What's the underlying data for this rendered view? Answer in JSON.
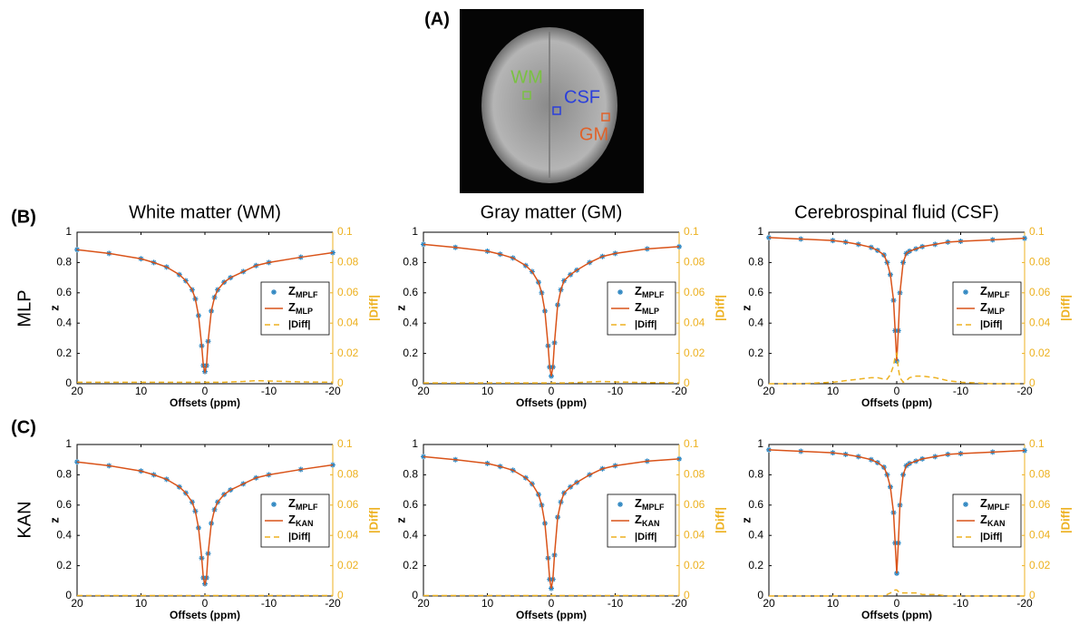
{
  "figure": {
    "panels": [
      "(A)",
      "(B)",
      "(C)"
    ],
    "rows": [
      "MLP",
      "KAN"
    ],
    "image_labels": [
      "WM",
      "CSF",
      "GM"
    ]
  },
  "chart_data": [
    {
      "type": "line",
      "title": "White matter (WM)",
      "x_label": "Offsets (ppm)",
      "y_label": "z",
      "y2_label": "|Diff|",
      "x": [
        20,
        15,
        10,
        8,
        6,
        4,
        3,
        2,
        1.5,
        1,
        0.5,
        0.25,
        0,
        -0.25,
        -0.5,
        -1,
        -1.5,
        -2,
        -3,
        -4,
        -6,
        -8,
        -10,
        -15,
        -20
      ],
      "xlim": [
        20,
        -20
      ],
      "xticks": [
        20,
        10,
        0,
        -10,
        -20
      ],
      "ylim": [
        0,
        1
      ],
      "yticks": [
        0,
        0.2,
        0.4,
        0.6,
        0.8,
        1
      ],
      "y2lim": [
        0,
        0.1
      ],
      "y2ticks": [
        0,
        0.02,
        0.04,
        0.06,
        0.08,
        0.1
      ],
      "legend": "right",
      "series": [
        {
          "name": "Z",
          "subscript": "MPLF",
          "color": "#2e86c1",
          "marker": "star",
          "values": [
            0.885,
            0.86,
            0.825,
            0.8,
            0.77,
            0.72,
            0.68,
            0.62,
            0.56,
            0.45,
            0.25,
            0.12,
            0.08,
            0.12,
            0.28,
            0.48,
            0.57,
            0.62,
            0.67,
            0.7,
            0.74,
            0.78,
            0.8,
            0.835,
            0.865
          ]
        },
        {
          "name": "Z",
          "subscript": "MLP",
          "color": "#d95319",
          "marker": "line",
          "values": [
            0.885,
            0.86,
            0.825,
            0.8,
            0.77,
            0.72,
            0.68,
            0.62,
            0.56,
            0.45,
            0.25,
            0.12,
            0.08,
            0.12,
            0.28,
            0.48,
            0.57,
            0.62,
            0.67,
            0.7,
            0.74,
            0.78,
            0.8,
            0.835,
            0.865
          ]
        },
        {
          "name": "|Diff|",
          "color": "#edb120",
          "marker": "dash",
          "axis": "y2",
          "values": [
            0.001,
            0.001,
            0.001,
            0.001,
            0.001,
            0.001,
            0.001,
            0.001,
            0.001,
            0.001,
            0.001,
            0.001,
            0.001,
            0.001,
            0.001,
            0.001,
            0.001,
            0.001,
            0.001,
            0.0012,
            0.0015,
            0.002,
            0.0018,
            0.0012,
            0.001
          ]
        }
      ]
    },
    {
      "type": "line",
      "title": "Gray matter (GM)",
      "x_label": "Offsets (ppm)",
      "y_label": "z",
      "y2_label": "|Diff|",
      "x": [
        20,
        15,
        10,
        8,
        6,
        4,
        3,
        2,
        1.5,
        1,
        0.5,
        0.25,
        0,
        -0.25,
        -0.5,
        -1,
        -1.5,
        -2,
        -3,
        -4,
        -6,
        -8,
        -10,
        -15,
        -20
      ],
      "xlim": [
        20,
        -20
      ],
      "xticks": [
        20,
        10,
        0,
        -10,
        -20
      ],
      "ylim": [
        0,
        1
      ],
      "yticks": [
        0,
        0.2,
        0.4,
        0.6,
        0.8,
        1
      ],
      "y2lim": [
        0,
        0.1
      ],
      "y2ticks": [
        0,
        0.02,
        0.04,
        0.06,
        0.08,
        0.1
      ],
      "legend": "right",
      "series": [
        {
          "name": "Z",
          "subscript": "MPLF",
          "color": "#2e86c1",
          "marker": "star",
          "values": [
            0.92,
            0.9,
            0.875,
            0.855,
            0.83,
            0.78,
            0.74,
            0.67,
            0.6,
            0.48,
            0.25,
            0.11,
            0.05,
            0.11,
            0.27,
            0.52,
            0.62,
            0.68,
            0.72,
            0.75,
            0.8,
            0.84,
            0.86,
            0.89,
            0.905
          ]
        },
        {
          "name": "Z",
          "subscript": "MLP",
          "color": "#d95319",
          "marker": "line",
          "values": [
            0.92,
            0.9,
            0.875,
            0.855,
            0.83,
            0.78,
            0.74,
            0.67,
            0.6,
            0.48,
            0.25,
            0.11,
            0.05,
            0.11,
            0.27,
            0.52,
            0.62,
            0.68,
            0.72,
            0.75,
            0.8,
            0.84,
            0.86,
            0.89,
            0.905
          ]
        },
        {
          "name": "|Diff|",
          "color": "#edb120",
          "marker": "dash",
          "axis": "y2",
          "values": [
            0.0005,
            0.0005,
            0.0005,
            0.0005,
            0.0005,
            0.0005,
            0.0005,
            0.0005,
            0.0005,
            0.0005,
            0.0005,
            0.0005,
            0.0005,
            0.0005,
            0.0005,
            0.0005,
            0.0005,
            0.0005,
            0.0006,
            0.0008,
            0.0012,
            0.0015,
            0.0012,
            0.0008,
            0.0005
          ]
        }
      ]
    },
    {
      "type": "line",
      "title": "Cerebrospinal fluid (CSF)",
      "x_label": "Offsets (ppm)",
      "y_label": "z",
      "y2_label": "|Diff|",
      "x": [
        20,
        15,
        10,
        8,
        6,
        4,
        3,
        2,
        1.5,
        1,
        0.5,
        0.25,
        0,
        -0.25,
        -0.5,
        -1,
        -1.5,
        -2,
        -3,
        -4,
        -6,
        -8,
        -10,
        -15,
        -20
      ],
      "xlim": [
        20,
        -20
      ],
      "xticks": [
        20,
        10,
        0,
        -10,
        -20
      ],
      "ylim": [
        0,
        1
      ],
      "yticks": [
        0,
        0.2,
        0.4,
        0.6,
        0.8,
        1
      ],
      "y2lim": [
        0,
        0.1
      ],
      "y2ticks": [
        0,
        0.02,
        0.04,
        0.06,
        0.08,
        0.1
      ],
      "legend": "right",
      "series": [
        {
          "name": "Z",
          "subscript": "MPLF",
          "color": "#2e86c1",
          "marker": "star",
          "values": [
            0.965,
            0.955,
            0.945,
            0.935,
            0.92,
            0.9,
            0.88,
            0.85,
            0.8,
            0.72,
            0.55,
            0.35,
            0.15,
            0.35,
            0.6,
            0.8,
            0.86,
            0.875,
            0.89,
            0.905,
            0.92,
            0.935,
            0.94,
            0.95,
            0.96
          ]
        },
        {
          "name": "Z",
          "subscript": "MLP",
          "color": "#d95319",
          "marker": "line",
          "values": [
            0.965,
            0.955,
            0.945,
            0.935,
            0.92,
            0.9,
            0.88,
            0.85,
            0.8,
            0.72,
            0.55,
            0.35,
            0.15,
            0.35,
            0.6,
            0.8,
            0.86,
            0.875,
            0.89,
            0.905,
            0.92,
            0.935,
            0.94,
            0.95,
            0.96
          ]
        },
        {
          "name": "|Diff|",
          "color": "#edb120",
          "marker": "dash",
          "axis": "y2",
          "values": [
            0,
            0,
            0.001,
            0.002,
            0.003,
            0.004,
            0.004,
            0.003,
            0.003,
            0.006,
            0.012,
            0.018,
            0.02,
            0.01,
            0.004,
            0.001,
            0.002,
            0.004,
            0.005,
            0.005,
            0.004,
            0.002,
            0.001,
            0,
            0
          ]
        }
      ]
    },
    {
      "type": "line",
      "x_label": "Offsets (ppm)",
      "y_label": "z",
      "y2_label": "|Diff|",
      "x": [
        20,
        15,
        10,
        8,
        6,
        4,
        3,
        2,
        1.5,
        1,
        0.5,
        0.25,
        0,
        -0.25,
        -0.5,
        -1,
        -1.5,
        -2,
        -3,
        -4,
        -6,
        -8,
        -10,
        -15,
        -20
      ],
      "xlim": [
        20,
        -20
      ],
      "xticks": [
        20,
        10,
        0,
        -10,
        -20
      ],
      "ylim": [
        0,
        1
      ],
      "yticks": [
        0,
        0.2,
        0.4,
        0.6,
        0.8,
        1
      ],
      "y2lim": [
        0,
        0.1
      ],
      "y2ticks": [
        0,
        0.02,
        0.04,
        0.06,
        0.08,
        0.1
      ],
      "legend": "right",
      "series": [
        {
          "name": "Z",
          "subscript": "MPLF",
          "color": "#2e86c1",
          "marker": "star",
          "values": [
            0.885,
            0.86,
            0.825,
            0.8,
            0.77,
            0.72,
            0.68,
            0.62,
            0.56,
            0.45,
            0.25,
            0.12,
            0.08,
            0.12,
            0.28,
            0.48,
            0.57,
            0.62,
            0.67,
            0.7,
            0.74,
            0.78,
            0.8,
            0.835,
            0.865
          ]
        },
        {
          "name": "Z",
          "subscript": "KAN",
          "color": "#d95319",
          "marker": "line",
          "values": [
            0.885,
            0.86,
            0.825,
            0.8,
            0.77,
            0.72,
            0.68,
            0.62,
            0.56,
            0.45,
            0.25,
            0.12,
            0.08,
            0.12,
            0.28,
            0.48,
            0.57,
            0.62,
            0.67,
            0.7,
            0.74,
            0.78,
            0.8,
            0.835,
            0.865
          ]
        },
        {
          "name": "|Diff|",
          "color": "#edb120",
          "marker": "dash",
          "axis": "y2",
          "values": [
            0.0003,
            0.0003,
            0.0003,
            0.0003,
            0.0003,
            0.0003,
            0.0003,
            0.0003,
            0.0003,
            0.0003,
            0.0003,
            0.0003,
            0.0003,
            0.0003,
            0.0003,
            0.0003,
            0.0003,
            0.0003,
            0.0003,
            0.0003,
            0.0003,
            0.0003,
            0.0003,
            0.0003,
            0.0003
          ]
        }
      ]
    },
    {
      "type": "line",
      "x_label": "Offsets (ppm)",
      "y_label": "z",
      "y2_label": "|Diff|",
      "x": [
        20,
        15,
        10,
        8,
        6,
        4,
        3,
        2,
        1.5,
        1,
        0.5,
        0.25,
        0,
        -0.25,
        -0.5,
        -1,
        -1.5,
        -2,
        -3,
        -4,
        -6,
        -8,
        -10,
        -15,
        -20
      ],
      "xlim": [
        20,
        -20
      ],
      "xticks": [
        20,
        10,
        0,
        -10,
        -20
      ],
      "ylim": [
        0,
        1
      ],
      "yticks": [
        0,
        0.2,
        0.4,
        0.6,
        0.8,
        1
      ],
      "y2lim": [
        0,
        0.1
      ],
      "y2ticks": [
        0,
        0.02,
        0.04,
        0.06,
        0.08,
        0.1
      ],
      "legend": "right",
      "series": [
        {
          "name": "Z",
          "subscript": "MPLF",
          "color": "#2e86c1",
          "marker": "star",
          "values": [
            0.92,
            0.9,
            0.875,
            0.855,
            0.83,
            0.78,
            0.74,
            0.67,
            0.6,
            0.48,
            0.25,
            0.11,
            0.05,
            0.11,
            0.27,
            0.52,
            0.62,
            0.68,
            0.72,
            0.75,
            0.8,
            0.84,
            0.86,
            0.89,
            0.905
          ]
        },
        {
          "name": "Z",
          "subscript": "KAN",
          "color": "#d95319",
          "marker": "line",
          "values": [
            0.92,
            0.9,
            0.875,
            0.855,
            0.83,
            0.78,
            0.74,
            0.67,
            0.6,
            0.48,
            0.25,
            0.11,
            0.05,
            0.11,
            0.27,
            0.52,
            0.62,
            0.68,
            0.72,
            0.75,
            0.8,
            0.84,
            0.86,
            0.89,
            0.905
          ]
        },
        {
          "name": "|Diff|",
          "color": "#edb120",
          "marker": "dash",
          "axis": "y2",
          "values": [
            0.0003,
            0.0003,
            0.0003,
            0.0003,
            0.0003,
            0.0003,
            0.0003,
            0.0003,
            0.0003,
            0.0003,
            0.0003,
            0.0003,
            0.0003,
            0.0003,
            0.0003,
            0.0003,
            0.0003,
            0.0003,
            0.0003,
            0.0003,
            0.0003,
            0.0003,
            0.0003,
            0.0003,
            0.0003
          ]
        }
      ]
    },
    {
      "type": "line",
      "x_label": "Offsets (ppm)",
      "y_label": "z",
      "y2_label": "|Diff|",
      "x": [
        20,
        15,
        10,
        8,
        6,
        4,
        3,
        2,
        1.5,
        1,
        0.5,
        0.25,
        0,
        -0.25,
        -0.5,
        -1,
        -1.5,
        -2,
        -3,
        -4,
        -6,
        -8,
        -10,
        -15,
        -20
      ],
      "xlim": [
        20,
        -20
      ],
      "xticks": [
        20,
        10,
        0,
        -10,
        -20
      ],
      "ylim": [
        0,
        1
      ],
      "yticks": [
        0,
        0.2,
        0.4,
        0.6,
        0.8,
        1
      ],
      "y2lim": [
        0,
        0.1
      ],
      "y2ticks": [
        0,
        0.02,
        0.04,
        0.06,
        0.08,
        0.1
      ],
      "legend": "right",
      "series": [
        {
          "name": "Z",
          "subscript": "MPLF",
          "color": "#2e86c1",
          "marker": "star",
          "values": [
            0.965,
            0.955,
            0.945,
            0.935,
            0.92,
            0.9,
            0.88,
            0.85,
            0.8,
            0.72,
            0.55,
            0.35,
            0.15,
            0.35,
            0.6,
            0.8,
            0.86,
            0.875,
            0.89,
            0.905,
            0.92,
            0.935,
            0.94,
            0.95,
            0.96
          ]
        },
        {
          "name": "Z",
          "subscript": "KAN",
          "color": "#d95319",
          "marker": "line",
          "values": [
            0.965,
            0.955,
            0.945,
            0.935,
            0.92,
            0.9,
            0.88,
            0.85,
            0.8,
            0.72,
            0.55,
            0.35,
            0.15,
            0.35,
            0.6,
            0.8,
            0.86,
            0.875,
            0.89,
            0.905,
            0.92,
            0.935,
            0.94,
            0.95,
            0.96
          ]
        },
        {
          "name": "|Diff|",
          "color": "#edb120",
          "marker": "dash",
          "axis": "y2",
          "values": [
            0,
            0,
            0,
            0,
            0,
            0,
            0,
            0,
            0.001,
            0.002,
            0.003,
            0.004,
            0.004,
            0.003,
            0.002,
            0.002,
            0.002,
            0.002,
            0.002,
            0.001,
            0.001,
            0,
            0,
            0,
            0
          ]
        }
      ]
    }
  ]
}
